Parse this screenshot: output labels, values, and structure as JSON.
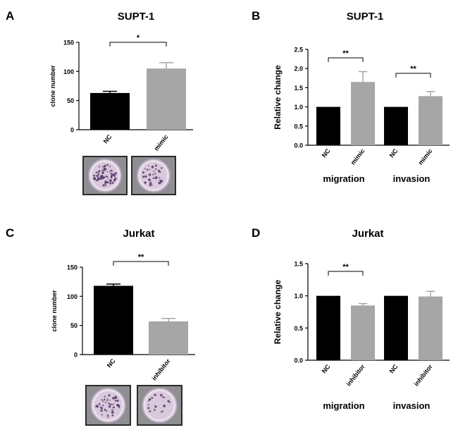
{
  "panels": [
    {
      "letter": "A",
      "title": "SUPT-1"
    },
    {
      "letter": "B",
      "title": "SUPT-1"
    },
    {
      "letter": "C",
      "title": "Jurkat"
    },
    {
      "letter": "D",
      "title": "Jurkat"
    }
  ],
  "colors": {
    "nc": "#000000",
    "treated": "#a6a6a6",
    "dish_rim": "#2b2b2b",
    "dish_fill": "#d9c9dc",
    "colony": "#5a3a6a"
  },
  "chart_data": [
    {
      "type": "bar",
      "panel": "A",
      "title": "SUPT-1",
      "ylabel": "clone number",
      "xlabel": "",
      "categories": [
        "NC",
        "mimic"
      ],
      "values": [
        63,
        105
      ],
      "errors": [
        3,
        10
      ],
      "ylim": [
        0,
        150
      ],
      "yticks": [
        "0",
        "50",
        "100",
        "150"
      ],
      "significance": [
        {
          "from": 0,
          "to": 1,
          "label": "*"
        }
      ],
      "grid": false
    },
    {
      "type": "bar",
      "panel": "B",
      "title": "SUPT-1",
      "ylabel": "Relative change",
      "xlabel": "",
      "categories": [
        "NC",
        "mimic",
        "NC",
        "mimic"
      ],
      "groups": [
        "migration",
        "invasion"
      ],
      "values": [
        1.0,
        1.65,
        1.0,
        1.28
      ],
      "errors": [
        0,
        0.27,
        0,
        0.12
      ],
      "ylim": [
        0,
        2.5
      ],
      "yticks": [
        "0.0",
        "0.5",
        "1.0",
        "1.5",
        "2.0",
        "2.5"
      ],
      "significance": [
        {
          "from": 0,
          "to": 1,
          "label": "**"
        },
        {
          "from": 2,
          "to": 3,
          "label": "**"
        }
      ],
      "grid": false
    },
    {
      "type": "bar",
      "panel": "C",
      "title": "Jurkat",
      "ylabel": "clone number",
      "xlabel": "",
      "categories": [
        "NC",
        "inhibitor"
      ],
      "values": [
        118,
        57
      ],
      "errors": [
        3,
        5
      ],
      "ylim": [
        0,
        150
      ],
      "yticks": [
        "0",
        "50",
        "100",
        "150"
      ],
      "significance": [
        {
          "from": 0,
          "to": 1,
          "label": "**"
        }
      ],
      "grid": false
    },
    {
      "type": "bar",
      "panel": "D",
      "title": "Jurkat",
      "ylabel": "Relative change",
      "xlabel": "",
      "categories": [
        "NC",
        "inhibitor",
        "NC",
        "inhibitor"
      ],
      "groups": [
        "migration",
        "invasion"
      ],
      "values": [
        1.0,
        0.85,
        1.0,
        0.99
      ],
      "errors": [
        0,
        0.03,
        0,
        0.08
      ],
      "ylim": [
        0,
        1.5
      ],
      "yticks": [
        "0.0",
        "0.5",
        "1.0",
        "1.5"
      ],
      "significance": [
        {
          "from": 0,
          "to": 1,
          "label": "**"
        }
      ],
      "grid": false
    }
  ]
}
